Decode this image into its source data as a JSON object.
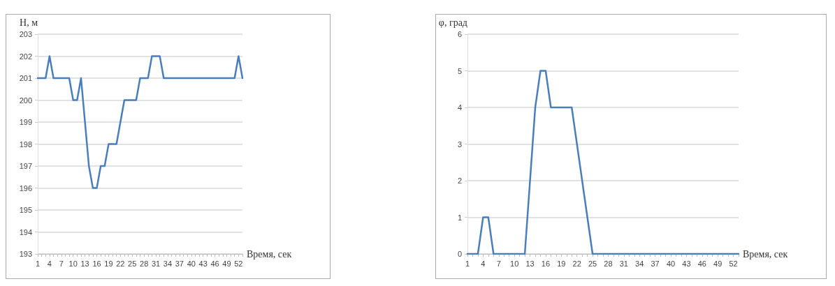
{
  "chart_data": [
    {
      "type": "line",
      "ylabel": "H, м",
      "xlabel": "Время, сек",
      "categories": [
        "1",
        null,
        null,
        "4",
        null,
        null,
        "7",
        null,
        null,
        "10",
        null,
        null,
        "13",
        null,
        null,
        "16",
        null,
        null,
        "19",
        null,
        null,
        "22",
        null,
        null,
        "25",
        null,
        null,
        "28",
        null,
        null,
        "31",
        null,
        null,
        "34",
        null,
        null,
        "37",
        null,
        null,
        "40",
        null,
        null,
        "43",
        null,
        null,
        "46",
        null,
        null,
        "49",
        null,
        null,
        "52",
        null
      ],
      "series": [
        {
          "color": "#4a7ebb",
          "values": [
            201,
            201,
            201,
            202,
            201,
            201,
            201,
            201,
            201,
            200,
            200,
            201,
            199,
            197,
            196,
            196,
            197,
            197,
            198,
            198,
            198,
            199,
            200,
            200,
            200,
            200,
            201,
            201,
            201,
            202,
            202,
            202,
            201,
            201,
            201,
            201,
            201,
            201,
            201,
            201,
            201,
            201,
            201,
            201,
            201,
            201,
            201,
            201,
            201,
            201,
            201,
            202,
            201
          ]
        }
      ],
      "ylim": [
        193,
        203
      ],
      "yticks": [
        193,
        194,
        195,
        196,
        197,
        198,
        199,
        200,
        201,
        202,
        203
      ],
      "grid": "y",
      "marker": "none",
      "line_style": "solid"
    },
    {
      "type": "line",
      "ylabel": "φ, град",
      "xlabel": "Время, сек",
      "categories": [
        "1",
        null,
        null,
        "4",
        null,
        null,
        "7",
        null,
        null,
        "10",
        null,
        null,
        "13",
        null,
        null,
        "16",
        null,
        null,
        "19",
        null,
        null,
        "22",
        null,
        null,
        "25",
        null,
        null,
        "28",
        null,
        null,
        "31",
        null,
        null,
        "34",
        null,
        null,
        "37",
        null,
        null,
        "40",
        null,
        null,
        "43",
        null,
        null,
        "46",
        null,
        null,
        "49",
        null,
        null,
        "52",
        null
      ],
      "series": [
        {
          "color": "#4a7ebb",
          "values": [
            0,
            0,
            0,
            1,
            1,
            0,
            0,
            0,
            0,
            0,
            0,
            0,
            2,
            4,
            5,
            5,
            4,
            4,
            4,
            4,
            4,
            3,
            2,
            1,
            0,
            0,
            0,
            0,
            0,
            0,
            0,
            0,
            0,
            0,
            0,
            0,
            0,
            0,
            0,
            0,
            0,
            0,
            0,
            0,
            0,
            0,
            0,
            0,
            0,
            0,
            0,
            0,
            0
          ]
        }
      ],
      "ylim": [
        0,
        6
      ],
      "yticks": [
        0,
        1,
        2,
        3,
        4,
        5,
        6
      ],
      "grid": "y",
      "marker": "none",
      "line_style": "solid"
    }
  ]
}
